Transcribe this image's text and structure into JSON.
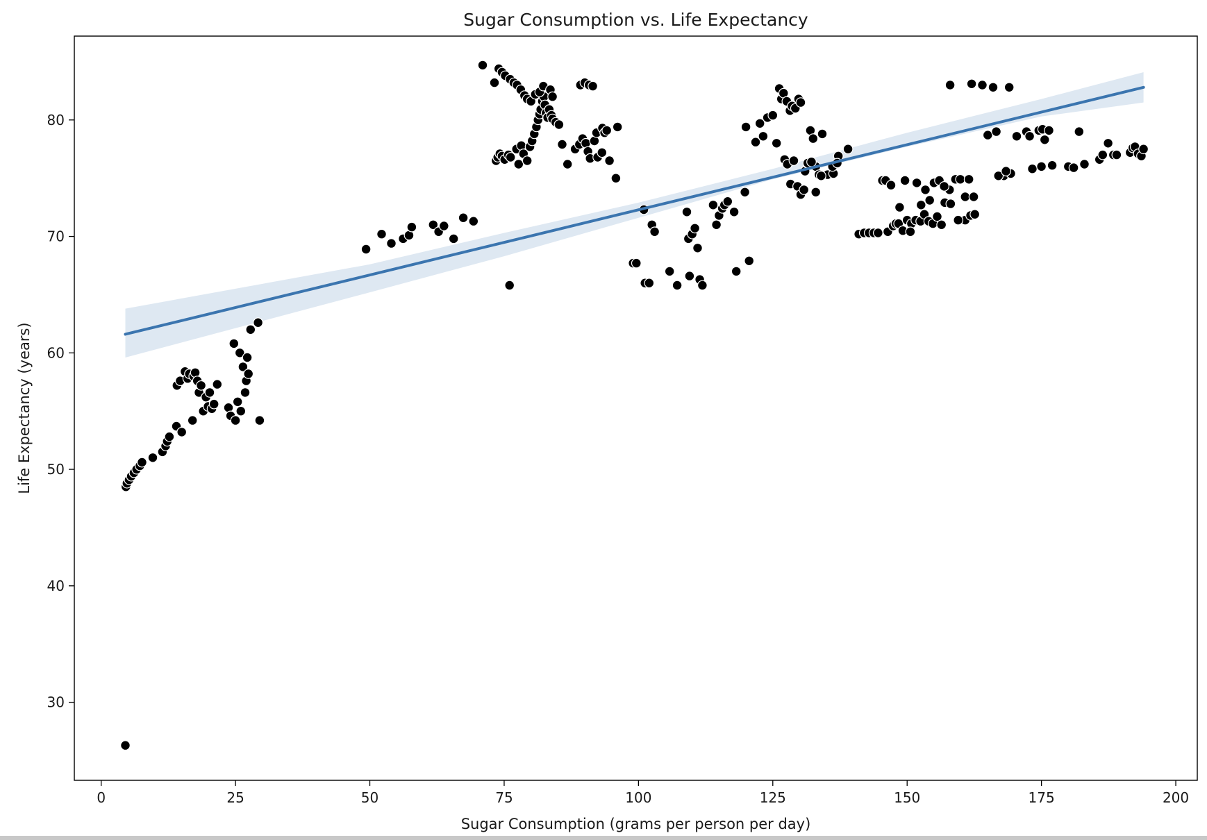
{
  "chart_data": {
    "type": "scatter",
    "title": "Sugar Consumption vs. Life Expectancy",
    "xlabel": "Sugar Consumption (grams per person per day)",
    "ylabel": "Life Expectancy (years)",
    "xlim": [
      -5,
      204
    ],
    "ylim": [
      23.3,
      87.2
    ],
    "xticks": [
      0,
      25,
      50,
      75,
      100,
      125,
      150,
      175,
      200
    ],
    "yticks": [
      30,
      40,
      50,
      60,
      70,
      80
    ],
    "grid": false,
    "legend": "none",
    "colors": {
      "points": "#000000",
      "point_edge": "#ffffff",
      "fit_line": "#3b75af",
      "ci_band": "#dce7f1"
    },
    "series": [
      {
        "kind": "points",
        "x": [
          4.5,
          4.6,
          4.8,
          5.2,
          5.6,
          6.1,
          6.6,
          7.2,
          7.6,
          9.6,
          11.4,
          12.0,
          12.3,
          12.7,
          14.0,
          14.1,
          14.7,
          15.0,
          15.6,
          16.1,
          16.4,
          17.0,
          17.2,
          17.5,
          17.9,
          18.2,
          18.6,
          19.0,
          19.5,
          19.9,
          20.2,
          20.6,
          21.0,
          21.6,
          23.7,
          24.1,
          24.7,
          25.0,
          25.4,
          25.8,
          26.0,
          26.4,
          26.8,
          27.0,
          27.2,
          27.4,
          27.8,
          29.2,
          29.5,
          4.5,
          49.3,
          52.2,
          54.0,
          56.2,
          57.3,
          57.8,
          61.8,
          62.8,
          63.8,
          65.6,
          67.4,
          69.3,
          71.0,
          73.2,
          73.5,
          73.8,
          74.2,
          74.6,
          75.1,
          75.8,
          76.2,
          77.3,
          77.7,
          78.2,
          78.6,
          79.3,
          79.8,
          80.2,
          80.6,
          81.0,
          81.3,
          81.6,
          81.8,
          82.1,
          82.4,
          82.6,
          82.8,
          83.1,
          83.4,
          83.8,
          84.0,
          84.6,
          85.2,
          85.8,
          86.8,
          88.2,
          89.0,
          89.6,
          90.2,
          90.6,
          91.0,
          91.8,
          92.2,
          93.3,
          93.7,
          94.1,
          94.6,
          95.8,
          96.1,
          76.0,
          74.0,
          74.6,
          75.2,
          76.1,
          76.8,
          77.4,
          78.1,
          78.8,
          79.3,
          80.0,
          80.8,
          81.6,
          82.3,
          83.6,
          84.0,
          89.2,
          90.0,
          90.8,
          91.5,
          92.4,
          93.2,
          99.0,
          99.6,
          101.0,
          101.2,
          102.0,
          102.5,
          103.0,
          105.8,
          107.2,
          109.0,
          109.3,
          109.5,
          110.0,
          110.5,
          111.0,
          111.4,
          111.9,
          113.9,
          114.5,
          115.0,
          115.6,
          116.0,
          116.6,
          117.8,
          118.2,
          119.8,
          120.6,
          120.0,
          121.8,
          122.6,
          123.2,
          124.0,
          125.0,
          125.7,
          126.2,
          126.6,
          127.0,
          127.6,
          128.2,
          128.6,
          129.2,
          129.8,
          130.2,
          131.0,
          131.6,
          132.0,
          132.5,
          133.0,
          133.6,
          134.2,
          135.2,
          136.3,
          137.2,
          139.0,
          127.2,
          127.7,
          128.3,
          128.9,
          129.6,
          130.2,
          130.8,
          131.5,
          132.2,
          133.0,
          134.0,
          136.1,
          137.0,
          141.0,
          142.0,
          142.9,
          143.8,
          144.6,
          145.4,
          146.4,
          147.4,
          147.9,
          148.4,
          149.2,
          150.0,
          150.8,
          151.6,
          152.5,
          153.2,
          154.0,
          154.8,
          155.6,
          156.4,
          157.0,
          157.9,
          159.0,
          159.9,
          160.8,
          161.8,
          162.6,
          146.0,
          147.0,
          148.6,
          149.6,
          150.6,
          151.8,
          152.6,
          153.4,
          154.2,
          155.0,
          156.0,
          156.9,
          158.1,
          159.5,
          160.8,
          161.5,
          162.4,
          158.0,
          162.0,
          164.0,
          166.0,
          169.0,
          165.0,
          166.6,
          168.0,
          169.3,
          170.4,
          172.2,
          173.3,
          174.5,
          175.2,
          175.6,
          176.4,
          180.0,
          182.0,
          167.0,
          168.4,
          172.8,
          175.0,
          177.0,
          181.0,
          183.0,
          185.8,
          186.4,
          187.4,
          188.4,
          189.0,
          191.5,
          192.0,
          192.4,
          193.0,
          193.6,
          194.0
        ],
        "y": [
          26.3,
          48.5,
          48.8,
          49.1,
          49.4,
          49.7,
          50.0,
          50.3,
          50.6,
          51.0,
          51.5,
          52.0,
          52.4,
          52.8,
          53.7,
          57.2,
          57.6,
          53.2,
          58.4,
          57.8,
          58.2,
          54.2,
          58.0,
          58.3,
          57.6,
          56.6,
          57.2,
          55.0,
          56.2,
          55.4,
          56.6,
          55.2,
          55.6,
          57.3,
          55.3,
          54.6,
          60.8,
          54.2,
          55.8,
          60.0,
          55.0,
          58.8,
          56.6,
          57.6,
          59.6,
          58.2,
          62.0,
          62.6,
          54.2,
          26.3,
          68.9,
          70.2,
          69.4,
          69.8,
          70.1,
          70.8,
          71.0,
          70.4,
          70.9,
          69.8,
          71.6,
          71.3,
          84.7,
          83.2,
          76.5,
          76.8,
          77.1,
          76.9,
          76.6,
          77.0,
          76.8,
          77.5,
          76.2,
          77.8,
          77.1,
          76.5,
          77.7,
          78.2,
          78.8,
          79.4,
          80.0,
          80.5,
          80.9,
          81.6,
          82.0,
          81.3,
          80.6,
          80.2,
          80.9,
          80.4,
          80.1,
          79.8,
          79.6,
          77.9,
          76.2,
          77.5,
          77.9,
          78.4,
          78.0,
          77.3,
          76.7,
          78.2,
          78.9,
          79.3,
          78.9,
          79.1,
          76.5,
          75.0,
          79.4,
          65.8,
          84.4,
          84.1,
          83.8,
          83.5,
          83.2,
          83.0,
          82.6,
          82.1,
          81.8,
          81.6,
          82.2,
          82.4,
          82.9,
          82.6,
          82.0,
          83.0,
          83.2,
          83.0,
          82.9,
          76.8,
          77.2,
          67.7,
          67.7,
          72.3,
          66.0,
          66.0,
          71.0,
          70.4,
          67.0,
          65.8,
          72.1,
          69.8,
          66.6,
          70.2,
          70.7,
          69.0,
          66.3,
          65.8,
          72.7,
          71.0,
          71.8,
          72.4,
          72.7,
          73.0,
          72.1,
          67.0,
          73.8,
          67.9,
          79.4,
          78.1,
          79.7,
          78.6,
          80.2,
          80.4,
          78.0,
          82.7,
          81.8,
          82.3,
          81.6,
          80.8,
          81.2,
          81.0,
          81.8,
          81.5,
          75.6,
          76.2,
          79.1,
          78.4,
          76.0,
          75.3,
          78.8,
          75.3,
          75.4,
          76.9,
          77.5,
          76.6,
          76.2,
          74.5,
          76.5,
          74.3,
          73.6,
          74.0,
          76.3,
          76.4,
          73.8,
          75.2,
          76.0,
          76.3,
          70.2,
          70.3,
          70.3,
          70.3,
          70.3,
          74.8,
          70.4,
          70.9,
          71.1,
          71.1,
          70.5,
          71.4,
          71.1,
          71.4,
          71.3,
          71.9,
          71.3,
          71.1,
          71.7,
          71.0,
          72.9,
          74.0,
          74.9,
          74.9,
          71.4,
          71.8,
          71.9,
          74.8,
          74.4,
          72.5,
          74.8,
          70.4,
          74.6,
          72.7,
          74.0,
          73.1,
          74.6,
          74.8,
          74.3,
          72.8,
          71.4,
          73.4,
          74.9,
          73.4,
          83.0,
          83.1,
          83.0,
          82.8,
          82.8,
          78.7,
          79.0,
          75.2,
          75.4,
          78.6,
          79.0,
          75.8,
          79.1,
          79.2,
          78.3,
          79.1,
          76.0,
          79.0,
          75.2,
          75.6,
          78.6,
          76.0,
          76.1,
          75.9,
          76.2,
          76.6,
          77.0,
          78.0,
          77.0,
          77.0,
          77.2,
          77.6,
          77.7,
          77.1,
          76.9,
          77.5
        ]
      },
      {
        "kind": "fit_line",
        "x": [
          4.5,
          194.0
        ],
        "y": [
          61.6,
          82.8
        ]
      },
      {
        "kind": "ci_band",
        "x": [
          4.5,
          50,
          75,
          100,
          125,
          150,
          175,
          194.0
        ],
        "y_upper": [
          63.8,
          67.6,
          70.3,
          72.9,
          75.8,
          78.9,
          81.8,
          84.1
        ],
        "y_lower": [
          59.6,
          65.2,
          68.3,
          71.6,
          74.9,
          77.7,
          80.3,
          81.5
        ]
      }
    ]
  }
}
